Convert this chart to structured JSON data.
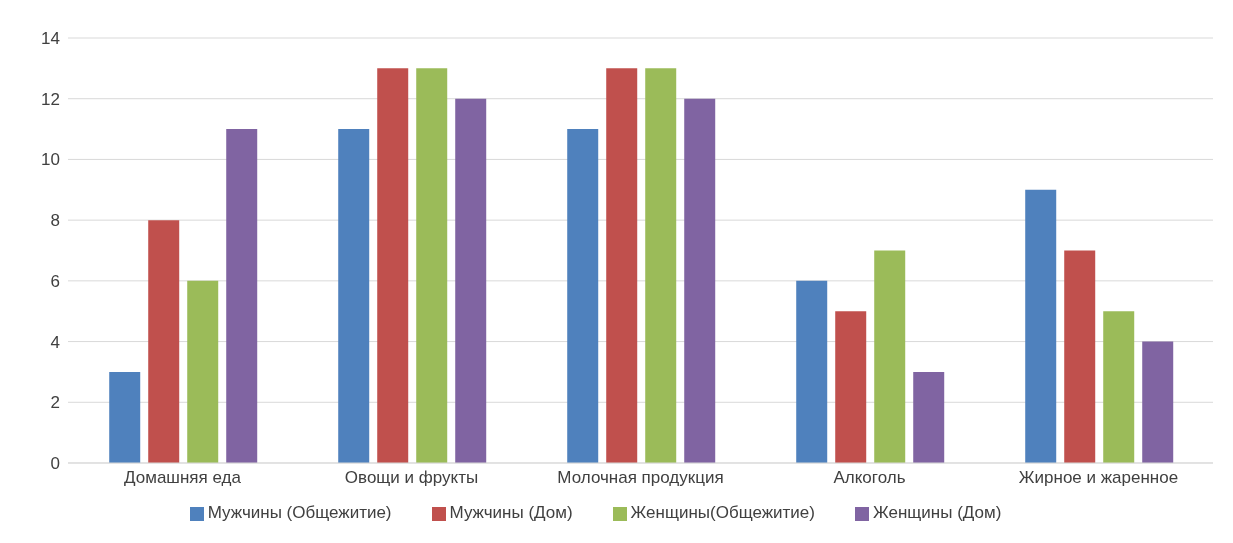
{
  "chart_data": {
    "type": "bar",
    "categories": [
      "Домашняя еда",
      "Овощи и фрукты",
      "Молочная продукция",
      "Алкоголь",
      "Жирное и жаренное"
    ],
    "series": [
      {
        "name": "Мужчины (Общежитие)",
        "color": "#4f81bd",
        "values": [
          3,
          11,
          11,
          6,
          9
        ]
      },
      {
        "name": "Мужчины (Дом)",
        "color": "#c0504d",
        "values": [
          8,
          13,
          13,
          5,
          7
        ]
      },
      {
        "name": "Женщины(Общежитие)",
        "color": "#9bbb59",
        "values": [
          6,
          13,
          13,
          7,
          5
        ]
      },
      {
        "name": "Женщины (Дом)",
        "color": "#8064a2",
        "values": [
          11,
          12,
          12,
          3,
          4
        ]
      }
    ],
    "ylim": [
      0,
      14
    ],
    "yticks": [
      0,
      2,
      4,
      6,
      8,
      10,
      12,
      14
    ],
    "grid": "y",
    "legend": "bottom"
  }
}
